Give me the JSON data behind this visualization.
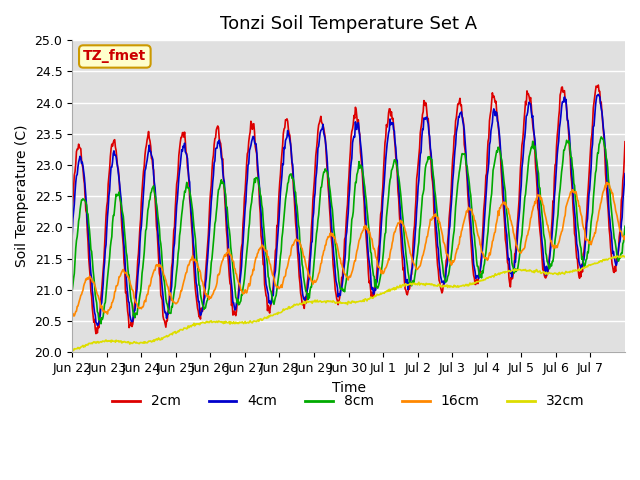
{
  "title": "Tonzi Soil Temperature Set A",
  "xlabel": "Time",
  "ylabel": "Soil Temperature (C)",
  "annotation": "TZ_fmet",
  "ylim": [
    20.0,
    25.0
  ],
  "yticks": [
    20.0,
    20.5,
    21.0,
    21.5,
    22.0,
    22.5,
    23.0,
    23.5,
    24.0,
    24.5,
    25.0
  ],
  "x_tick_labels": [
    "Jun 22",
    "Jun 23",
    "Jun 24",
    "Jun 25",
    "Jun 26",
    "Jun 27",
    "Jun 28",
    "Jun 29",
    "Jun 30",
    "Jul 1",
    "Jul 2",
    "Jul 3",
    "Jul 4",
    "Jul 5",
    "Jul 6",
    "Jul 7"
  ],
  "colors": {
    "2cm": "#dd0000",
    "4cm": "#0000cc",
    "8cm": "#00aa00",
    "16cm": "#ff8800",
    "32cm": "#dddd00"
  },
  "legend_labels": [
    "2cm",
    "4cm",
    "8cm",
    "16cm",
    "32cm"
  ],
  "plot_bg": "#e0e0e0",
  "annotation_bg": "#ffffcc",
  "annotation_border": "#cc9900",
  "annotation_text_color": "#cc0000",
  "title_fontsize": 13,
  "axis_label_fontsize": 10,
  "tick_fontsize": 9
}
